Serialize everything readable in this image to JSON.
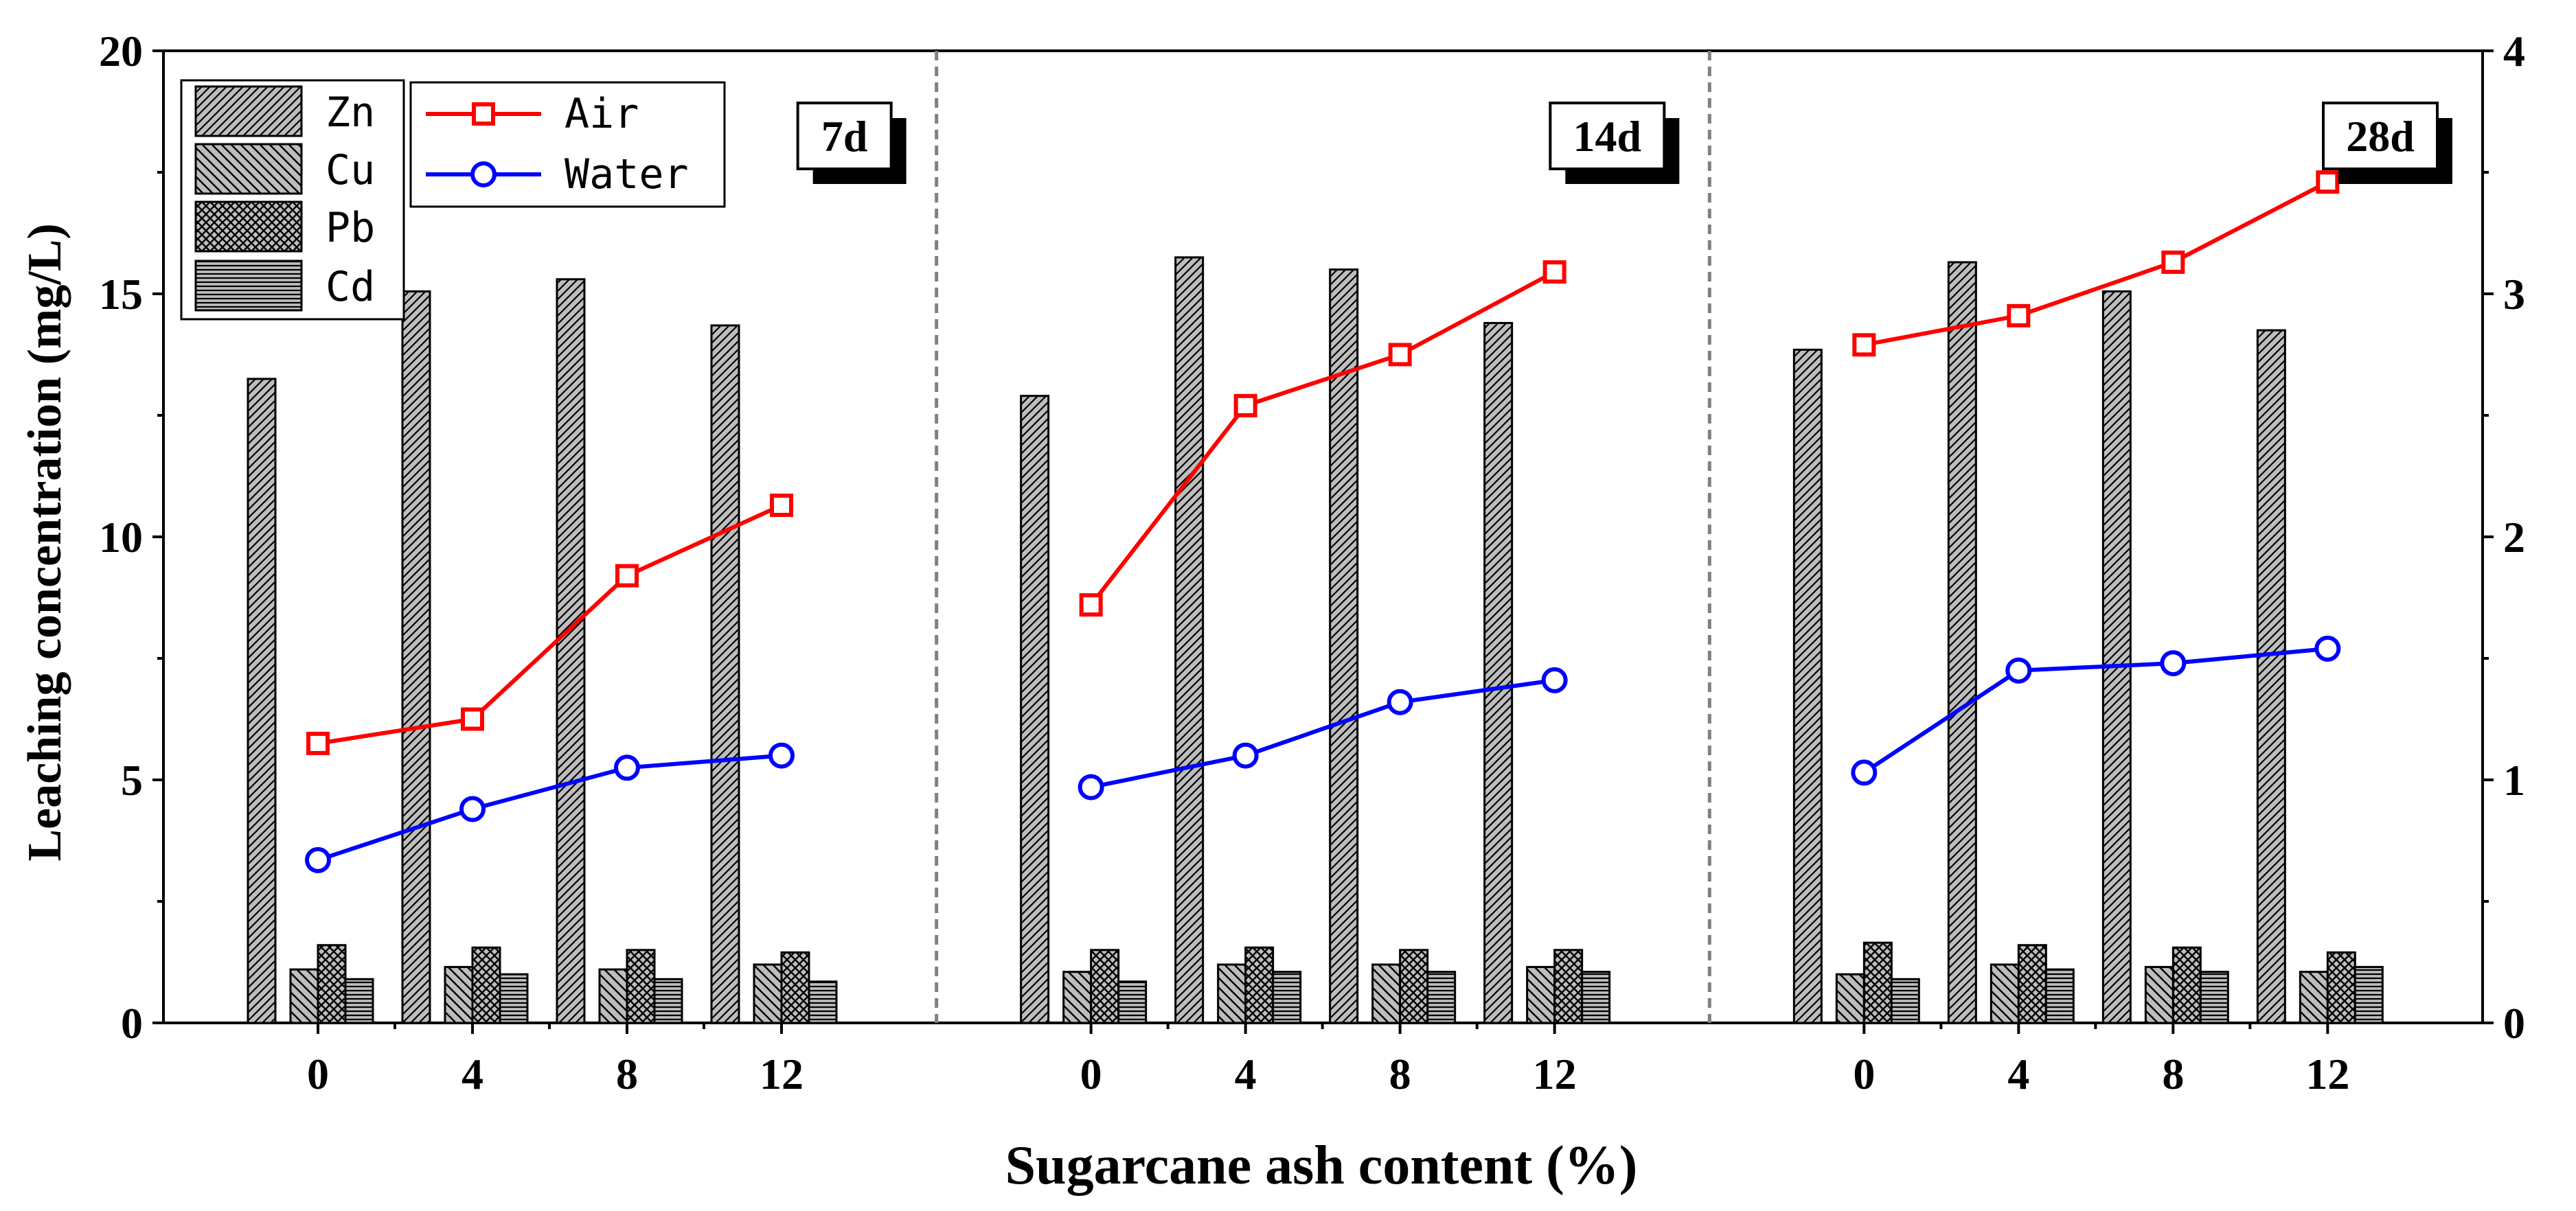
{
  "chart_data": {
    "type": "bar",
    "xlabel": "Sugarcane ash content (%)",
    "ylabel": "Leaching concentration (mg/L)",
    "ylim": [
      0,
      20
    ],
    "y2lim": [
      0,
      4
    ],
    "y_ticks": [
      "0",
      "5",
      "10",
      "15",
      "20"
    ],
    "y2_ticks": [
      "0",
      "1",
      "2",
      "3",
      "4"
    ],
    "categories": [
      "0",
      "4",
      "8",
      "12"
    ],
    "panels": [
      {
        "label": "7d",
        "bars": {
          "Zn": [
            13.25,
            15.05,
            15.3,
            14.35
          ],
          "Cu": [
            1.1,
            1.15,
            1.1,
            1.2
          ],
          "Pb": [
            1.6,
            1.55,
            1.5,
            1.45
          ],
          "Cd": [
            0.9,
            1.0,
            0.9,
            0.85
          ]
        },
        "lines": {
          "Air": [
            1.15,
            1.25,
            1.84,
            2.13
          ],
          "Water": [
            0.67,
            0.88,
            1.05,
            1.1
          ]
        }
      },
      {
        "label": "14d",
        "bars": {
          "Zn": [
            12.9,
            15.75,
            15.5,
            14.4
          ],
          "Cu": [
            1.05,
            1.2,
            1.2,
            1.15
          ],
          "Pb": [
            1.5,
            1.55,
            1.5,
            1.5
          ],
          "Cd": [
            0.85,
            1.05,
            1.05,
            1.05
          ]
        },
        "lines": {
          "Air": [
            1.72,
            2.54,
            2.75,
            3.09
          ],
          "Water": [
            0.97,
            1.1,
            1.32,
            1.41
          ]
        }
      },
      {
        "label": "28d",
        "bars": {
          "Zn": [
            13.85,
            15.65,
            15.05,
            14.25
          ],
          "Cu": [
            1.0,
            1.2,
            1.15,
            1.05
          ],
          "Pb": [
            1.65,
            1.6,
            1.55,
            1.45
          ],
          "Cd": [
            0.9,
            1.1,
            1.05,
            1.15
          ]
        },
        "lines": {
          "Air": [
            2.79,
            2.91,
            3.13,
            3.46
          ],
          "Water": [
            1.03,
            1.45,
            1.48,
            1.54
          ]
        }
      }
    ],
    "bar_series": [
      "Zn",
      "Cu",
      "Pb",
      "Cd"
    ],
    "line_series": [
      {
        "name": "Air",
        "color": "#ff0000",
        "marker": "square"
      },
      {
        "name": "Water",
        "color": "#0000ff",
        "marker": "circle"
      }
    ]
  }
}
